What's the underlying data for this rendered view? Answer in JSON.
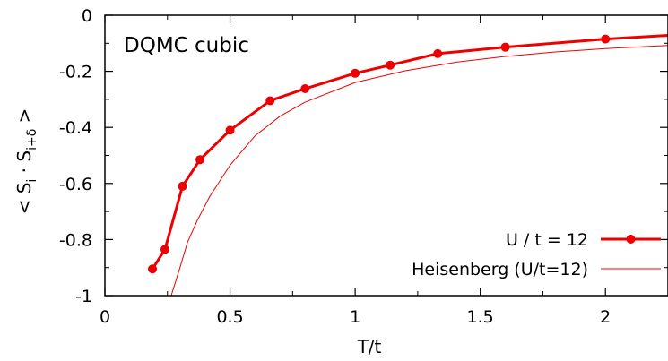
{
  "chart_data": {
    "type": "line",
    "title": "DQMC cubic",
    "xlabel": "T/t",
    "ylabel": "< S_i · S_i+δ >",
    "ylabel_parts": {
      "open": "< S",
      "sub1": "i",
      "dot": " · S",
      "sub2": "i+δ",
      "close": " >"
    },
    "xlim": [
      0,
      2.25
    ],
    "ylim": [
      -1,
      0
    ],
    "xticks": [
      0,
      0.5,
      1,
      1.5,
      2
    ],
    "xtick_labels": [
      "0",
      "0.5",
      "1",
      "1.5",
      "2"
    ],
    "yticks": [
      0,
      -0.2,
      -0.4,
      -0.6,
      -0.8,
      -1
    ],
    "ytick_labels": [
      "0",
      "-0.2",
      "-0.4",
      "-0.6",
      "-0.8",
      "-1"
    ],
    "legend_position": "bottom-right",
    "series": [
      {
        "name": "U / t = 12",
        "color": "#ee0000",
        "style": "line-with-markers",
        "x": [
          0.19,
          0.24,
          0.31,
          0.38,
          0.5,
          0.66,
          0.8,
          1.0,
          1.14,
          1.33,
          1.6,
          2.0,
          2.25
        ],
        "y": [
          -0.905,
          -0.835,
          -0.61,
          -0.515,
          -0.41,
          -0.305,
          -0.262,
          -0.207,
          -0.178,
          -0.137,
          -0.114,
          -0.085,
          -0.072
        ]
      },
      {
        "name": "Heisenberg (U/t=12)",
        "color": "#ee0000",
        "style": "thin-line",
        "x": [
          0.265,
          0.3,
          0.33,
          0.37,
          0.42,
          0.5,
          0.6,
          0.7,
          0.8,
          1.0,
          1.2,
          1.4,
          1.6,
          1.8,
          2.0,
          2.25
        ],
        "y": [
          -1.0,
          -0.9,
          -0.81,
          -0.73,
          -0.645,
          -0.535,
          -0.43,
          -0.36,
          -0.31,
          -0.24,
          -0.198,
          -0.168,
          -0.147,
          -0.131,
          -0.119,
          -0.108
        ]
      }
    ]
  }
}
